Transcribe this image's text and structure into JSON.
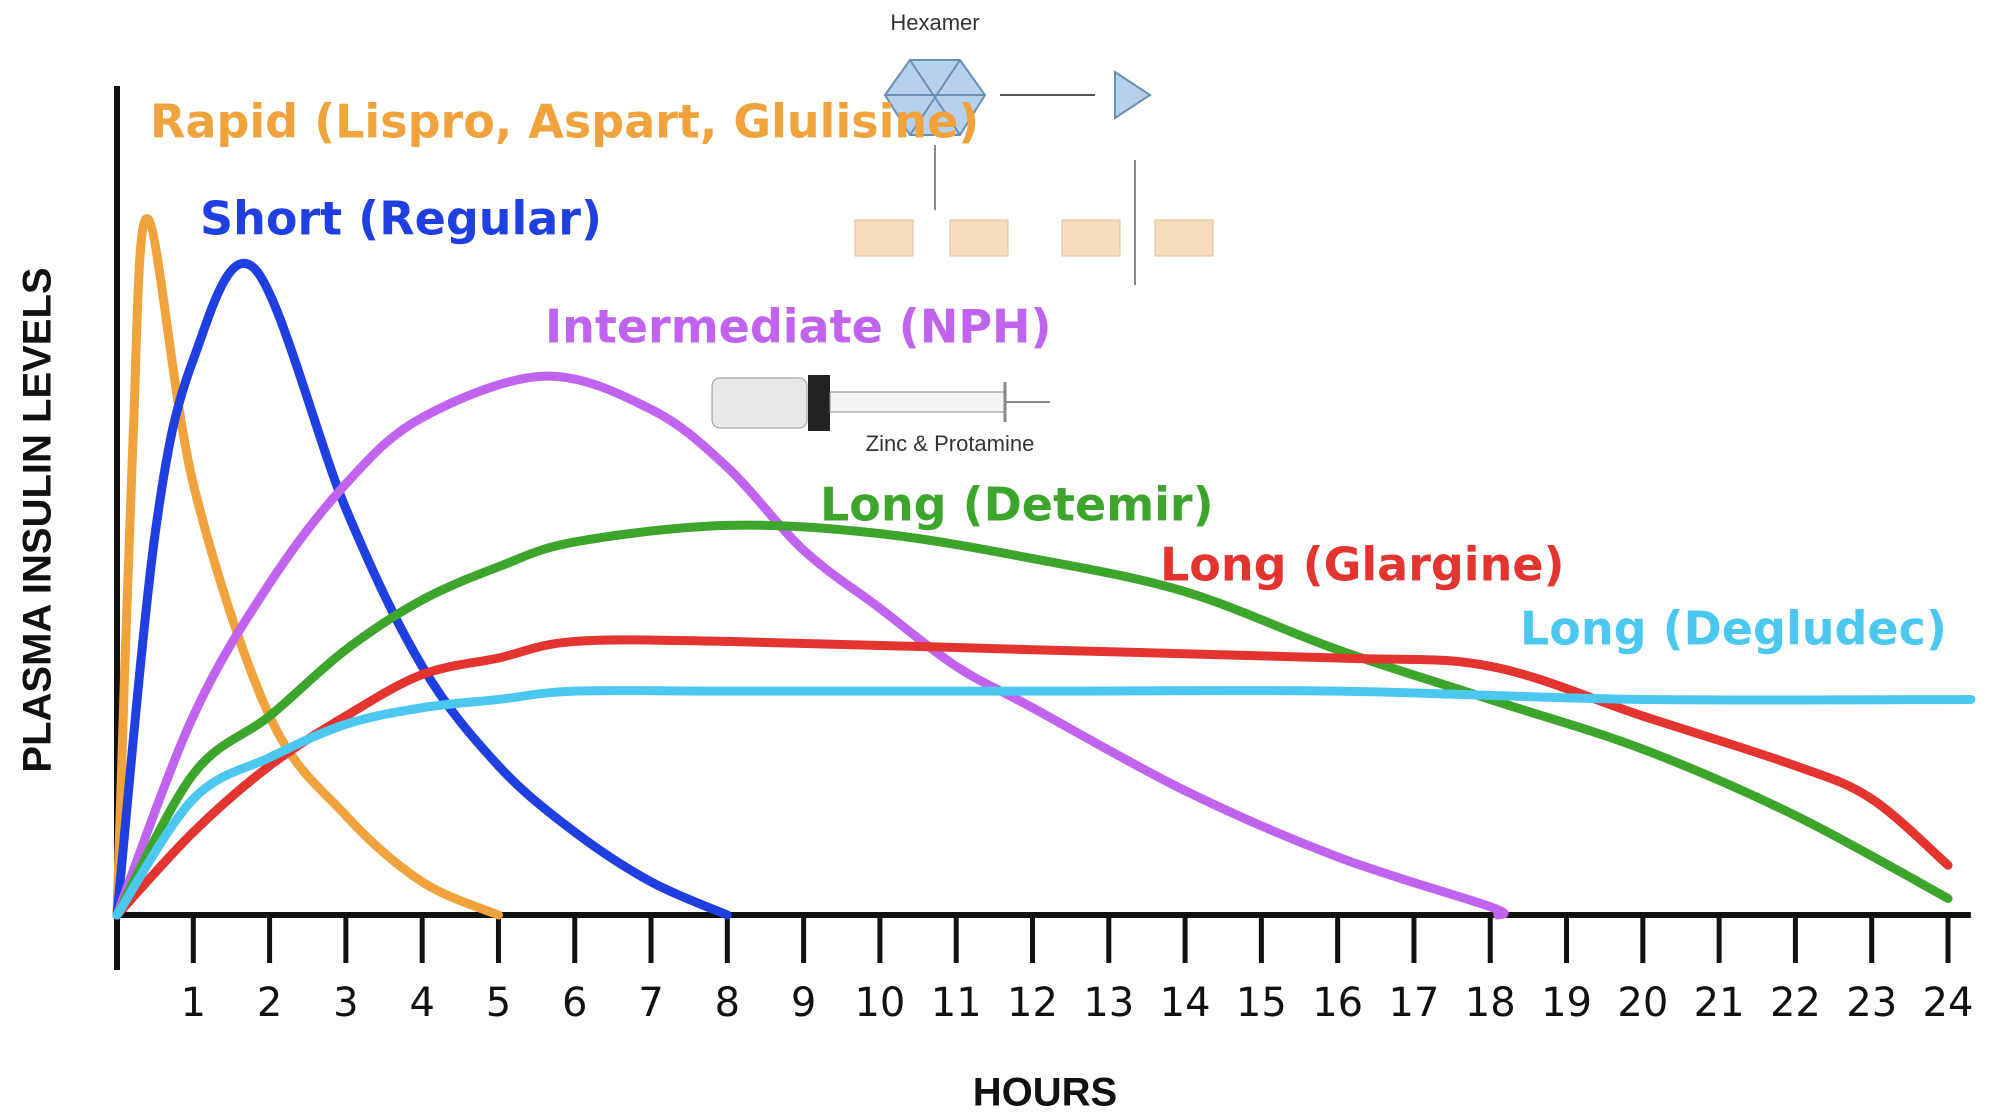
{
  "chart_data": {
    "type": "line",
    "y_label": "PLASMA INSULIN LEVELS",
    "x_label": "HOURS",
    "annotations": [
      "Hexamer",
      "Zinc & Protamine"
    ],
    "xlim": [
      0,
      24.3
    ],
    "ylim": [
      0,
      100
    ],
    "xticks": [
      1,
      2,
      3,
      4,
      5,
      6,
      7,
      8,
      9,
      10,
      11,
      12,
      13,
      14,
      15,
      16,
      17,
      18,
      19,
      20,
      21,
      22,
      23,
      24
    ],
    "series": [
      {
        "name": "Rapid (Lispro, Aspart, Glulisine)",
        "color": "#f0a23c",
        "x": [
          0,
          0.2,
          0.4,
          1,
          2,
          3,
          4,
          5
        ],
        "values": [
          0,
          55,
          84,
          52,
          24,
          12,
          4,
          0
        ]
      },
      {
        "name": "Short (Regular)",
        "color": "#1f3fe0",
        "x": [
          0,
          0.5,
          1,
          1.8,
          3,
          4,
          5,
          6,
          7,
          8
        ],
        "values": [
          0,
          46,
          67,
          78,
          49,
          30,
          18,
          10,
          4,
          0
        ]
      },
      {
        "name": "Intermediate (NPH)",
        "color": "#c064f0",
        "x": [
          0,
          1,
          2,
          3,
          4,
          5.6,
          7,
          8,
          9,
          10,
          11,
          12,
          14,
          16,
          18,
          18.1
        ],
        "values": [
          0,
          24,
          40,
          52,
          60,
          65,
          61,
          54,
          44,
          37,
          30,
          25,
          15,
          7,
          1,
          0
        ]
      },
      {
        "name": "Long (Detemir)",
        "color": "#3da52c",
        "x": [
          0,
          1,
          2,
          3,
          4,
          5,
          6,
          8,
          10,
          12,
          14,
          16,
          18,
          20,
          22,
          24
        ],
        "values": [
          0,
          17,
          24,
          32,
          38,
          42,
          45,
          47,
          46,
          43,
          39,
          32,
          26,
          20,
          12,
          2
        ]
      },
      {
        "name": "Long (Glargine)",
        "color": "#e3342f",
        "x": [
          0,
          1,
          2,
          3,
          4,
          5,
          6,
          8,
          12,
          16,
          18,
          20,
          22,
          23,
          24
        ],
        "values": [
          0,
          10,
          18,
          24,
          29,
          31,
          33,
          33,
          32,
          31,
          30,
          24,
          18,
          14,
          6
        ]
      },
      {
        "name": "Long (Degludec)",
        "color": "#4cc8f0",
        "x": [
          0,
          1,
          2,
          3,
          4,
          5,
          6,
          8,
          12,
          16,
          20,
          24.3
        ],
        "values": [
          0,
          14,
          19,
          23,
          25,
          26,
          27,
          27,
          27,
          27,
          26,
          26
        ]
      }
    ]
  }
}
